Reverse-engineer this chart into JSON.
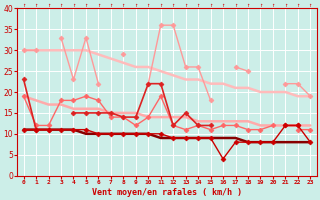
{
  "background_color": "#cceee8",
  "grid_color": "#ffffff",
  "xlabel": "Vent moyen/en rafales ( km/h )",
  "xlabel_color": "#cc0000",
  "x_labels": [
    "0",
    "1",
    "2",
    "3",
    "4",
    "5",
    "6",
    "7",
    "8",
    "9",
    "10",
    "11",
    "12",
    "13",
    "14",
    "15",
    "16",
    "17",
    "18",
    "19",
    "20",
    "21",
    "22",
    "23"
  ],
  "ylim": [
    0,
    40
  ],
  "yticks": [
    0,
    5,
    10,
    15,
    20,
    25,
    30,
    35,
    40
  ],
  "series": [
    {
      "data": [
        30,
        30,
        30,
        30,
        30,
        30,
        29,
        28,
        27,
        26,
        26,
        25,
        24,
        23,
        23,
        22,
        22,
        21,
        21,
        20,
        20,
        20,
        19,
        19
      ],
      "color": "#ffbbbb",
      "linewidth": 1.8,
      "marker": null,
      "markersize": 0,
      "linestyle": "-",
      "zorder": 1
    },
    {
      "data": [
        30,
        30,
        null,
        33,
        23,
        33,
        22,
        null,
        29,
        null,
        22,
        36,
        36,
        26,
        26,
        18,
        null,
        26,
        25,
        null,
        null,
        22,
        22,
        19
      ],
      "color": "#ff9999",
      "linewidth": 1.0,
      "marker": "D",
      "markersize": 2.5,
      "linestyle": "-",
      "zorder": 2
    },
    {
      "data": [
        19,
        12,
        12,
        18,
        18,
        19,
        18,
        14,
        14,
        12,
        14,
        19,
        12,
        11,
        12,
        11,
        12,
        12,
        11,
        11,
        12,
        null,
        11,
        11
      ],
      "color": "#ff6666",
      "linewidth": 1.0,
      "marker": "D",
      "markersize": 2.5,
      "linestyle": "-",
      "zorder": 3
    },
    {
      "data": [
        19,
        18,
        17,
        17,
        16,
        16,
        16,
        15,
        15,
        15,
        14,
        14,
        14,
        14,
        13,
        13,
        13,
        13,
        13,
        12,
        12,
        12,
        12,
        12
      ],
      "color": "#ffaaaa",
      "linewidth": 1.8,
      "marker": null,
      "markersize": 0,
      "linestyle": "-",
      "zorder": 1
    },
    {
      "data": [
        23,
        11,
        11,
        null,
        15,
        15,
        15,
        15,
        14,
        14,
        22,
        22,
        12,
        15,
        12,
        12,
        null,
        null,
        null,
        null,
        null,
        12,
        12,
        null
      ],
      "color": "#dd2222",
      "linewidth": 1.2,
      "marker": "D",
      "markersize": 2.5,
      "linestyle": "-",
      "zorder": 4
    },
    {
      "data": [
        11,
        11,
        11,
        11,
        11,
        10,
        10,
        10,
        10,
        10,
        10,
        9,
        9,
        9,
        9,
        9,
        9,
        9,
        8,
        8,
        8,
        8,
        8,
        8
      ],
      "color": "#880000",
      "linewidth": 1.8,
      "marker": null,
      "markersize": 0,
      "linestyle": "-",
      "zorder": 1
    },
    {
      "data": [
        11,
        11,
        11,
        11,
        11,
        11,
        10,
        10,
        10,
        10,
        10,
        10,
        9,
        9,
        9,
        9,
        4,
        8,
        8,
        8,
        8,
        12,
        12,
        8
      ],
      "color": "#cc0000",
      "linewidth": 1.0,
      "marker": "D",
      "markersize": 2.5,
      "linestyle": "-",
      "zorder": 4
    }
  ],
  "tick_label_color": "#cc0000",
  "spine_color": "#cc0000",
  "wind_arrows": true
}
